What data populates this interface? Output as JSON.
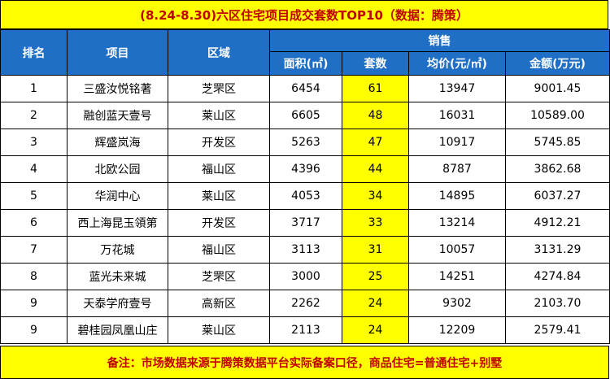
{
  "title": "(8.24-8.30)六区住宅项目成交套数TOP10（数据：腾策）",
  "headers": {
    "rank": "排名",
    "project": "项目",
    "district": "区域",
    "sales_group": "销售",
    "area": "面积(㎡)",
    "units": "套数",
    "avg_price": "均价(元/㎡)",
    "amount": "金额(万元)"
  },
  "rows": [
    {
      "rank": "1",
      "project": "三盛汝悦铭著",
      "district": "芝罘区",
      "area": "6454",
      "units": "61",
      "avg_price": "13947",
      "amount": "9001.45"
    },
    {
      "rank": "2",
      "project": "融创蓝天壹号",
      "district": "莱山区",
      "area": "6605",
      "units": "48",
      "avg_price": "16031",
      "amount": "10589.00"
    },
    {
      "rank": "3",
      "project": "辉盛岚海",
      "district": "开发区",
      "area": "5263",
      "units": "47",
      "avg_price": "10917",
      "amount": "5745.85"
    },
    {
      "rank": "4",
      "project": "北欧公园",
      "district": "福山区",
      "area": "4396",
      "units": "44",
      "avg_price": "8787",
      "amount": "3862.68"
    },
    {
      "rank": "5",
      "project": "华润中心",
      "district": "莱山区",
      "area": "4053",
      "units": "34",
      "avg_price": "14895",
      "amount": "6037.27"
    },
    {
      "rank": "6",
      "project": "西上海昆玉領第",
      "district": "开发区",
      "area": "3717",
      "units": "33",
      "avg_price": "13214",
      "amount": "4912.21"
    },
    {
      "rank": "7",
      "project": "万花城",
      "district": "福山区",
      "area": "3113",
      "units": "31",
      "avg_price": "10057",
      "amount": "3131.29"
    },
    {
      "rank": "8",
      "project": "蓝光未来城",
      "district": "芝罘区",
      "area": "3000",
      "units": "25",
      "avg_price": "14251",
      "amount": "4274.84"
    },
    {
      "rank": "9",
      "project": "天泰学府壹号",
      "district": "高新区",
      "area": "2262",
      "units": "24",
      "avg_price": "9302",
      "amount": "2103.70"
    },
    {
      "rank": "9",
      "project": "碧桂园凤凰山庄",
      "district": "莱山区",
      "area": "2113",
      "units": "24",
      "avg_price": "12209",
      "amount": "2579.41"
    }
  ],
  "note": "备注：市场数据来源于腾策数据平台实际备案口径，商品住宅=普通住宅+别墅",
  "colors": {
    "header_blue": "#1f6fc6",
    "highlight_yellow": "#ffff00",
    "accent_red": "#c00000"
  }
}
